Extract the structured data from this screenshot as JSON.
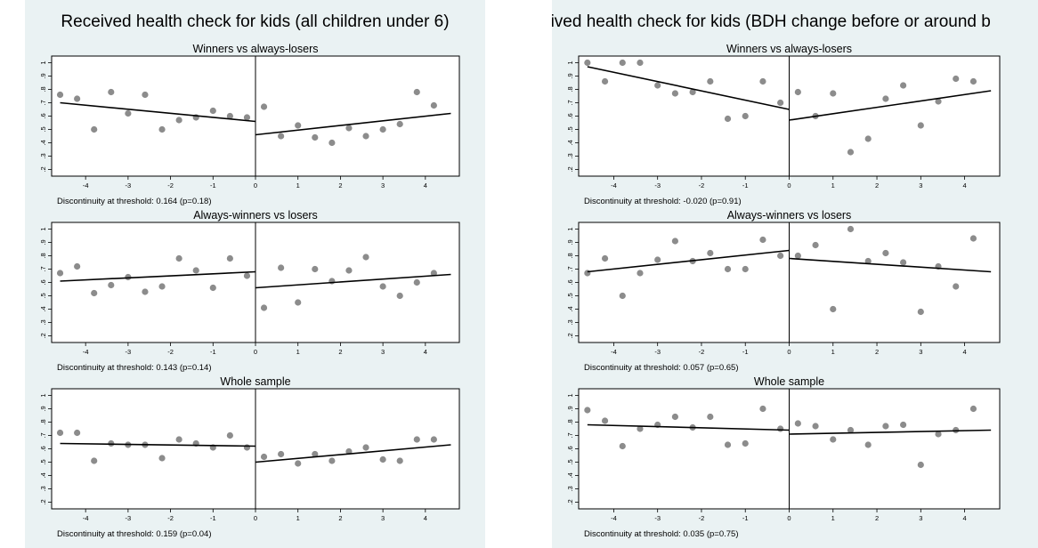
{
  "panels": [
    {
      "title": "Received health check for kids (all children under 6)",
      "displayed_title": "Received health check for kids (all children under 6)",
      "subplots": [
        {
          "subtitle": "Winners vs always-losers",
          "note": "Discontinuity at threshold: 0.164 (p=0.18)"
        },
        {
          "subtitle": "Always-winners vs losers",
          "note": "Discontinuity at threshold: 0.143 (p=0.14)"
        },
        {
          "subtitle": "Whole sample",
          "note": "Discontinuity at threshold: 0.159 (p=0.04)"
        }
      ]
    },
    {
      "title": "Received health check for kids (BDH change before or around birth)",
      "displayed_title": "eived health check for kids (BDH change before or around b",
      "subplots": [
        {
          "subtitle": "Winners vs always-losers",
          "note": "Discontinuity at threshold: -0.020 (p=0.91)"
        },
        {
          "subtitle": "Always-winners vs losers",
          "note": "Discontinuity at threshold: 0.057 (p=0.65)"
        },
        {
          "subtitle": "Whole sample",
          "note": "Discontinuity at threshold: 0.035 (p=0.75)"
        }
      ]
    }
  ],
  "chart_data": [
    {
      "type": "scatter",
      "panel": 0,
      "title": "Winners vs always-losers",
      "xlim": [
        -4.8,
        4.8
      ],
      "ylim": [
        0.15,
        1.05
      ],
      "xticks": [
        "-4",
        "-3",
        "-2",
        "-1",
        "0",
        "1",
        "2",
        "3",
        "4"
      ],
      "xtick_values": [
        -4,
        -3,
        -2,
        -1,
        0,
        1,
        2,
        3,
        4
      ],
      "yticks": [
        ".2",
        ".3",
        ".4",
        ".5",
        ".6",
        ".7",
        ".8",
        ".9",
        "1"
      ],
      "ytick_values": [
        0.2,
        0.3,
        0.4,
        0.5,
        0.6,
        0.7,
        0.8,
        0.9,
        1
      ],
      "points": {
        "x": [
          -4.6,
          -4.2,
          -3.8,
          -3.4,
          -3.0,
          -2.6,
          -2.2,
          -1.8,
          -1.4,
          -1.0,
          -0.6,
          -0.2,
          0.2,
          0.6,
          1.0,
          1.4,
          1.8,
          2.2,
          2.6,
          3.0,
          3.4,
          3.8,
          4.2
        ],
        "y": [
          0.76,
          0.73,
          0.5,
          0.78,
          0.62,
          0.76,
          0.5,
          0.57,
          0.59,
          0.64,
          0.6,
          0.59,
          0.67,
          0.45,
          0.53,
          0.44,
          0.4,
          0.51,
          0.45,
          0.5,
          0.54,
          0.78,
          0.68
        ]
      },
      "fit_left": {
        "x": [
          -4.6,
          0
        ],
        "y": [
          0.7,
          0.56
        ]
      },
      "fit_right": {
        "x": [
          0,
          4.6
        ],
        "y": [
          0.46,
          0.62
        ]
      },
      "grid": false,
      "legend": "none"
    },
    {
      "type": "scatter",
      "panel": 0,
      "title": "Always-winners vs losers",
      "xlim": [
        -4.8,
        4.8
      ],
      "ylim": [
        0.15,
        1.05
      ],
      "xticks": [
        "-4",
        "-3",
        "-2",
        "-1",
        "0",
        "1",
        "2",
        "3",
        "4"
      ],
      "xtick_values": [
        -4,
        -3,
        -2,
        -1,
        0,
        1,
        2,
        3,
        4
      ],
      "yticks": [
        ".2",
        ".3",
        ".4",
        ".5",
        ".6",
        ".7",
        ".8",
        ".9",
        "1"
      ],
      "ytick_values": [
        0.2,
        0.3,
        0.4,
        0.5,
        0.6,
        0.7,
        0.8,
        0.9,
        1
      ],
      "points": {
        "x": [
          -4.6,
          -4.2,
          -3.8,
          -3.4,
          -3.0,
          -2.6,
          -2.2,
          -1.8,
          -1.4,
          -1.0,
          -0.6,
          -0.2,
          0.2,
          0.6,
          1.0,
          1.4,
          1.8,
          2.2,
          2.6,
          3.0,
          3.4,
          3.8,
          4.2
        ],
        "y": [
          0.67,
          0.72,
          0.52,
          0.58,
          0.64,
          0.53,
          0.57,
          0.78,
          0.69,
          0.56,
          0.78,
          0.65,
          0.41,
          0.71,
          0.45,
          0.7,
          0.61,
          0.69,
          0.79,
          0.57,
          0.5,
          0.6,
          0.67
        ]
      },
      "fit_left": {
        "x": [
          -4.6,
          0
        ],
        "y": [
          0.61,
          0.68
        ]
      },
      "fit_right": {
        "x": [
          0,
          4.6
        ],
        "y": [
          0.56,
          0.66
        ]
      },
      "grid": false,
      "legend": "none"
    },
    {
      "type": "scatter",
      "panel": 0,
      "title": "Whole sample",
      "xlim": [
        -4.8,
        4.8
      ],
      "ylim": [
        0.15,
        1.05
      ],
      "xticks": [
        "-4",
        "-3",
        "-2",
        "-1",
        "0",
        "1",
        "2",
        "3",
        "4"
      ],
      "xtick_values": [
        -4,
        -3,
        -2,
        -1,
        0,
        1,
        2,
        3,
        4
      ],
      "yticks": [
        ".2",
        ".3",
        ".4",
        ".5",
        ".6",
        ".7",
        ".8",
        ".9",
        "1"
      ],
      "ytick_values": [
        0.2,
        0.3,
        0.4,
        0.5,
        0.6,
        0.7,
        0.8,
        0.9,
        1
      ],
      "points": {
        "x": [
          -4.6,
          -4.2,
          -3.8,
          -3.4,
          -3.0,
          -2.6,
          -2.2,
          -1.8,
          -1.4,
          -1.0,
          -0.6,
          -0.2,
          0.2,
          0.6,
          1.0,
          1.4,
          1.8,
          2.2,
          2.6,
          3.0,
          3.4,
          3.8,
          4.2
        ],
        "y": [
          0.72,
          0.72,
          0.51,
          0.64,
          0.63,
          0.63,
          0.53,
          0.67,
          0.64,
          0.61,
          0.7,
          0.61,
          0.54,
          0.56,
          0.49,
          0.56,
          0.51,
          0.58,
          0.61,
          0.52,
          0.51,
          0.67,
          0.67
        ]
      },
      "fit_left": {
        "x": [
          -4.6,
          0
        ],
        "y": [
          0.64,
          0.62
        ]
      },
      "fit_right": {
        "x": [
          0,
          4.6
        ],
        "y": [
          0.5,
          0.63
        ]
      },
      "grid": false,
      "legend": "none"
    },
    {
      "type": "scatter",
      "panel": 1,
      "title": "Winners vs always-losers",
      "xlim": [
        -4.8,
        4.8
      ],
      "ylim": [
        0.15,
        1.05
      ],
      "xticks": [
        "-4",
        "-3",
        "-2",
        "-1",
        "0",
        "1",
        "2",
        "3",
        "4"
      ],
      "xtick_values": [
        -4,
        -3,
        -2,
        -1,
        0,
        1,
        2,
        3,
        4
      ],
      "yticks": [
        ".2",
        ".3",
        ".4",
        ".5",
        ".6",
        ".7",
        ".8",
        ".9",
        "1"
      ],
      "ytick_values": [
        0.2,
        0.3,
        0.4,
        0.5,
        0.6,
        0.7,
        0.8,
        0.9,
        1
      ],
      "points": {
        "x": [
          -4.6,
          -4.2,
          -3.8,
          -3.4,
          -3.0,
          -2.6,
          -2.2,
          -1.8,
          -1.4,
          -1.0,
          -0.6,
          -0.2,
          0.2,
          0.6,
          1.0,
          1.4,
          1.8,
          2.2,
          2.6,
          3.0,
          3.4,
          3.8,
          4.2
        ],
        "y": [
          1.0,
          0.86,
          1.0,
          1.0,
          0.83,
          0.77,
          0.78,
          0.86,
          0.58,
          0.6,
          0.86,
          0.7,
          0.78,
          0.6,
          0.77,
          0.33,
          0.43,
          0.73,
          0.83,
          0.53,
          0.71,
          0.88,
          0.86
        ]
      },
      "fit_left": {
        "x": [
          -4.6,
          0
        ],
        "y": [
          0.97,
          0.65
        ]
      },
      "fit_right": {
        "x": [
          0,
          4.6
        ],
        "y": [
          0.57,
          0.79
        ]
      },
      "grid": false,
      "legend": "none"
    },
    {
      "type": "scatter",
      "panel": 1,
      "title": "Always-winners vs losers",
      "xlim": [
        -4.8,
        4.8
      ],
      "ylim": [
        0.15,
        1.05
      ],
      "xticks": [
        "-4",
        "-3",
        "-2",
        "-1",
        "0",
        "1",
        "2",
        "3",
        "4"
      ],
      "xtick_values": [
        -4,
        -3,
        -2,
        -1,
        0,
        1,
        2,
        3,
        4
      ],
      "yticks": [
        ".2",
        ".3",
        ".4",
        ".5",
        ".6",
        ".7",
        ".8",
        ".9",
        "1"
      ],
      "ytick_values": [
        0.2,
        0.3,
        0.4,
        0.5,
        0.6,
        0.7,
        0.8,
        0.9,
        1
      ],
      "points": {
        "x": [
          -4.6,
          -4.2,
          -3.8,
          -3.4,
          -3.0,
          -2.6,
          -2.2,
          -1.8,
          -1.4,
          -1.0,
          -0.6,
          -0.2,
          0.2,
          0.6,
          1.0,
          1.4,
          1.8,
          2.2,
          2.6,
          3.0,
          3.4,
          3.8,
          4.2
        ],
        "y": [
          0.67,
          0.78,
          0.5,
          0.67,
          0.77,
          0.91,
          0.76,
          0.82,
          0.7,
          0.7,
          0.92,
          0.8,
          0.8,
          0.88,
          0.4,
          1.0,
          0.76,
          0.82,
          0.75,
          0.38,
          0.72,
          0.57,
          0.93
        ]
      },
      "fit_left": {
        "x": [
          -4.6,
          0
        ],
        "y": [
          0.68,
          0.84
        ]
      },
      "fit_right": {
        "x": [
          0,
          4.6
        ],
        "y": [
          0.78,
          0.68
        ]
      },
      "grid": false,
      "legend": "none"
    },
    {
      "type": "scatter",
      "panel": 1,
      "title": "Whole sample",
      "xlim": [
        -4.8,
        4.8
      ],
      "ylim": [
        0.15,
        1.05
      ],
      "xticks": [
        "-4",
        "-3",
        "-2",
        "-1",
        "0",
        "1",
        "2",
        "3",
        "4"
      ],
      "xtick_values": [
        -4,
        -3,
        -2,
        -1,
        0,
        1,
        2,
        3,
        4
      ],
      "yticks": [
        ".2",
        ".3",
        ".4",
        ".5",
        ".6",
        ".7",
        ".8",
        ".9",
        "1"
      ],
      "ytick_values": [
        0.2,
        0.3,
        0.4,
        0.5,
        0.6,
        0.7,
        0.8,
        0.9,
        1
      ],
      "points": {
        "x": [
          -4.6,
          -4.2,
          -3.8,
          -3.4,
          -3.0,
          -2.6,
          -2.2,
          -1.8,
          -1.4,
          -1.0,
          -0.6,
          -0.2,
          0.2,
          0.6,
          1.0,
          1.4,
          1.8,
          2.2,
          2.6,
          3.0,
          3.4,
          3.8,
          4.2
        ],
        "y": [
          0.89,
          0.81,
          0.62,
          0.75,
          0.78,
          0.84,
          0.76,
          0.84,
          0.63,
          0.64,
          0.9,
          0.75,
          0.79,
          0.77,
          0.67,
          0.74,
          0.63,
          0.77,
          0.78,
          0.48,
          0.71,
          0.74,
          0.9
        ]
      },
      "fit_left": {
        "x": [
          -4.6,
          0
        ],
        "y": [
          0.78,
          0.74
        ]
      },
      "fit_right": {
        "x": [
          0,
          4.6
        ],
        "y": [
          0.71,
          0.74
        ]
      },
      "grid": false,
      "legend": "none"
    }
  ],
  "colors": {
    "background": "#eaf2f3",
    "plot_area": "#ffffff",
    "marker": "#8c8c8c",
    "line": "#000000"
  }
}
